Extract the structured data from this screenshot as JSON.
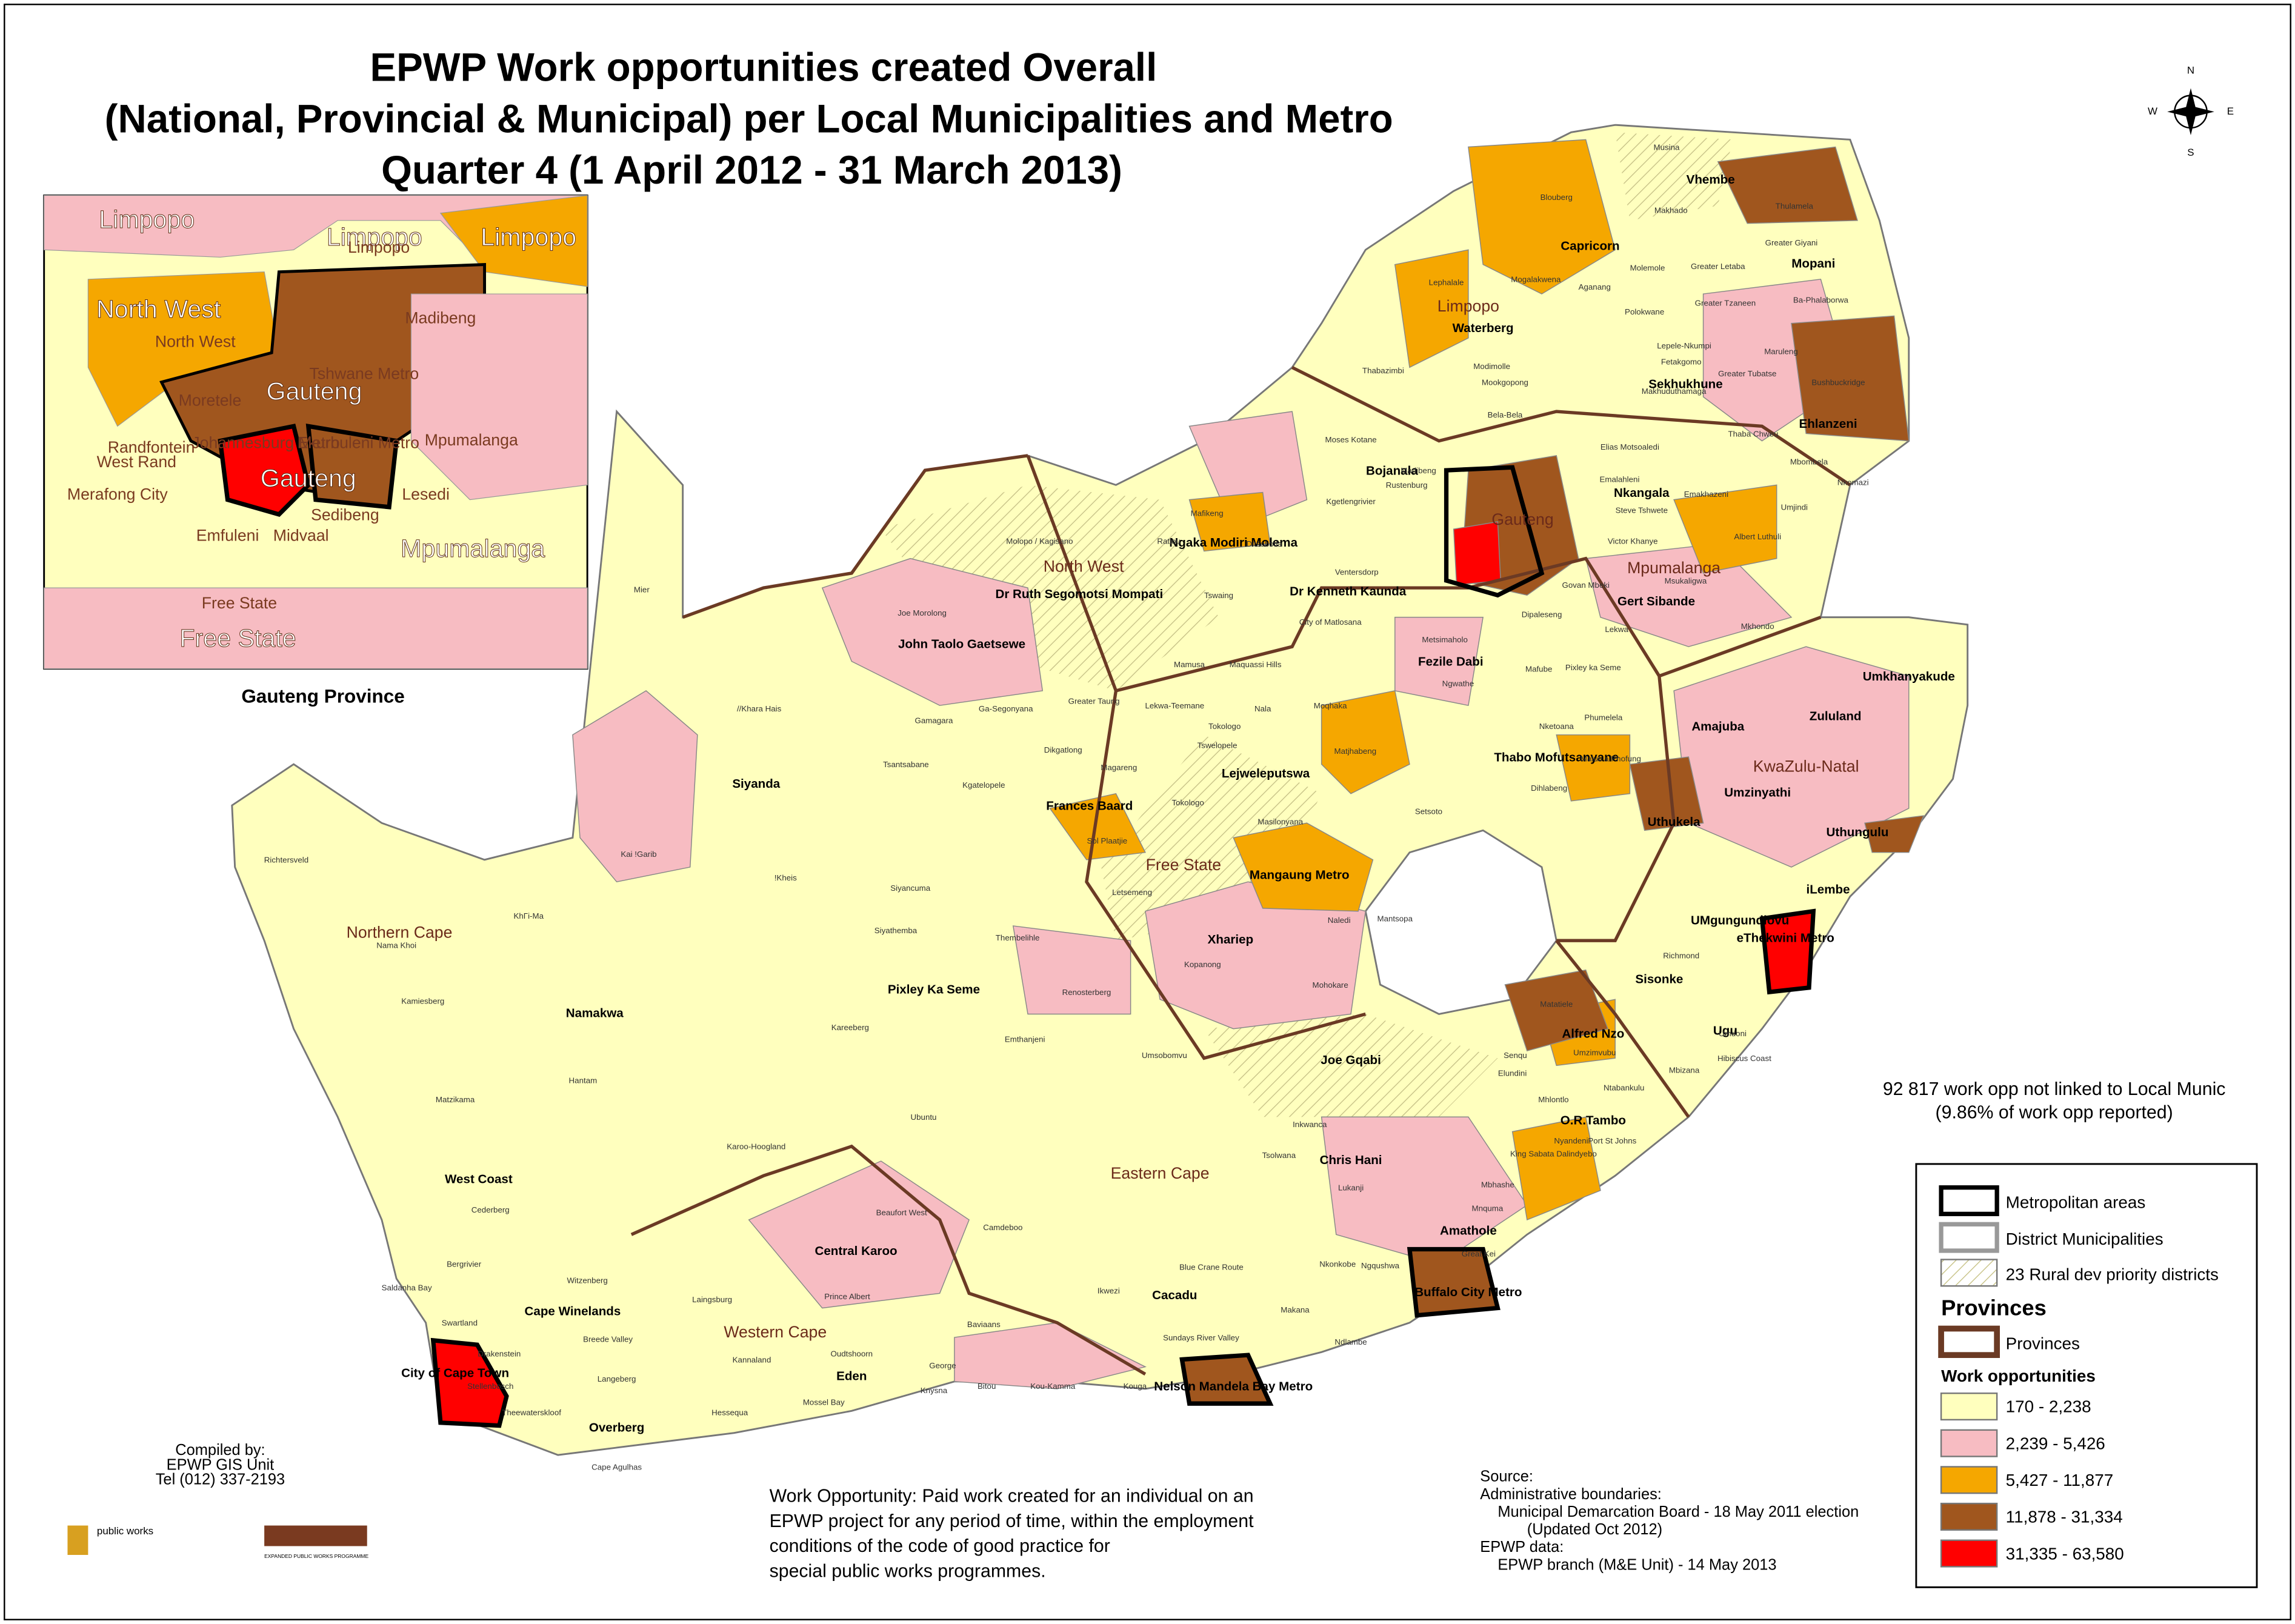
{
  "title": {
    "lines": [
      "EPWP Work opportunities created Overall",
      "(National, Provincial & Municipal) per Local Municipalities and Metro",
      "Quarter 4  (1 April 2012 - 31 March 2013)"
    ]
  },
  "compass": {
    "n": "N",
    "e": "E",
    "s": "S",
    "w": "W"
  },
  "inset": {
    "caption": "Gauteng Province",
    "big_labels": [
      "Limpopo",
      "Limpopo",
      "North West",
      "Gauteng",
      "Gauteng",
      "Mpumalanga",
      "Free State",
      "Limpopo"
    ],
    "small_labels": [
      "Limpopo",
      "North West",
      "Mpumalanga",
      "Free State",
      "Randfontein",
      "West Rand",
      "Merafong City",
      "Emfuleni",
      "Midvaal",
      "Sedibeng",
      "Lesedi",
      "Johannesburg Metro",
      "Ekurhuleni Metro",
      "Tshwane Metro",
      "Moretele",
      "Madibeng"
    ]
  },
  "map": {
    "province_labels": [
      "Limpopo",
      "North West",
      "Mpumalanga",
      "Gauteng",
      "KwaZulu-Natal",
      "Free State",
      "Northern Cape",
      "Eastern Cape",
      "Western Cape"
    ],
    "district_labels": [
      "Capricorn",
      "Vhembe",
      "Mopani",
      "Waterberg",
      "Sekhukhune",
      "Ehlanzeni",
      "Nkangala",
      "Bojanala",
      "Ngaka Modiri Molema",
      "Dr Ruth Segomotsi Mompati",
      "Dr Kenneth Kaunda",
      "Gert Sibande",
      "John Taolo Gaetsewe",
      "Fezile Dabi",
      "Siyanda",
      "Frances Baard",
      "Lejweleputswa",
      "Thabo Mofutsanyane",
      "Amajuba",
      "Zululand",
      "Umkhanyakude",
      "Umzinyathi",
      "Uthukela",
      "Uthungulu",
      "iLembe",
      "Mangaung Metro",
      "Xhariep",
      "UMgungundlovu",
      "eThekwini Metro",
      "Pixley Ka Seme",
      "Namakwa",
      "Sisonke",
      "Alfred Nzo",
      "Ugu",
      "Joe Gqabi",
      "O.R.Tambo",
      "Chris Hani",
      "West Coast",
      "Amathole",
      "Central Karoo",
      "Cacadu",
      "Buffalo City Metro",
      "Cape Winelands",
      "City of Cape Town",
      "Eden",
      "Nelson Mandela Bay Metro",
      "Overberg"
    ],
    "municipality_labels": [
      "Musina",
      "Makhado",
      "Thulamela",
      "Polokwane",
      "Lephalale",
      "Modimolle",
      "Thabazimbi",
      "Mier",
      "//Khara Hais",
      "Kai !Garib",
      "Richtersveld",
      "Nama Khoi",
      "KhΓi-Ma",
      "Kamiesberg",
      "Hantam",
      "Matzikama",
      "Karoo-Hoogland",
      "Cederberg",
      "Bergrivier",
      "Saldanha Bay",
      "Swartland",
      "Drakenstein",
      "Stellenbosch",
      "Breede Valley",
      "Langeberg",
      "Theewaterskloof",
      "Cape Agulhas",
      "Witzenberg",
      "Laingsburg",
      "Prince Albert",
      "Beaufort West",
      "Kannaland",
      "Oudtshoorn",
      "Hessequa",
      "Mossel Bay",
      "George",
      "Knysna",
      "Bitou",
      "Kou-Kamma",
      "Kouga",
      "Baviaans",
      "Camdeboo",
      "Ikwezi",
      "Blue Crane Route",
      "Makana",
      "Ndlambe",
      "Sundays River Valley",
      "Ubuntu",
      "Umsobomvu",
      "Emthanjeni",
      "Kareeberg",
      "Renosterberg",
      "Thembelihle",
      "Siyathemba",
      "Siyancuma",
      "!Kheis",
      "Tsantsabane",
      "Kgatelopele",
      "Dikgatlong",
      "Magareng",
      "Sol Plaatjie",
      "Gamagara",
      "Ga-Segonyana",
      "Joe Morolong",
      "Kopanong",
      "Mohokare",
      "Naledi",
      "Mantsopa",
      "Letsemeng",
      "Tokologo",
      "Tswelopele",
      "Masilonyana",
      "Matjhabeng",
      "Nala",
      "Moqhaka",
      "Ngwathe",
      "Metsimaholo",
      "Mafube",
      "Phumelela",
      "Nketoana",
      "Dihlabeng",
      "Setsoto",
      "Maluti a Phofung",
      "Senqu",
      "Elundini",
      "Inkwanca",
      "Tsolwana",
      "Lukanji",
      "Nkonkobe",
      "Ngqushwa",
      "Great Kei",
      "Mbhashe",
      "Mnquma",
      "King Sabata Dalindyebo",
      "Nyandeni",
      "Port St Johns",
      "Mhlontlo",
      "Umzimvubu",
      "Matatiele",
      "Ntabankulu",
      "Mbizana",
      "Hibiscus Coast",
      "Umdoni",
      "Richmond",
      "Mafikeng",
      "Ratlou",
      "Tswaing",
      "Ditsobotla",
      "Moses Kotane",
      "Rustenburg",
      "Madibeng",
      "Kgetlengrivier",
      "Ventersdorp",
      "City of Matlosana",
      "Maquassi Hills",
      "Greater Taung",
      "Lekwa-Teemane",
      "Mamusa",
      "Molopo / Kagisano",
      "Mogalakwena",
      "Aganang",
      "Molemole",
      "Blouberg",
      "Greater Letaba",
      "Greater Tzaneen",
      "Ba-Phalaborwa",
      "Maruleng",
      "Greater Giyani",
      "Lepele-Nkumpi",
      "Fetakgomo",
      "Greater Tubatse",
      "Makhuduthamaga",
      "Elias Motsoaledi",
      "Thaba Chweu",
      "Mbombela",
      "Umjindi",
      "Nkomazi",
      "Bushbuckridge",
      "Emakhazeni",
      "Steve Tshwete",
      "Emalahleni",
      "Victor Khanye",
      "Albert Luthuli",
      "Msukaligwa",
      "Mkhondo",
      "Lekwa",
      "Govan Mbeki",
      "Dipaleseng",
      "Pixley ka Seme",
      "Bela-Bela",
      "Mookgopong",
      "Tokologo"
    ]
  },
  "note": {
    "lines": [
      "92 817 work opp not linked to Local Munic",
      "(9.86% of work opp reported)"
    ]
  },
  "legend": {
    "items": [
      "Metropolitan areas",
      "District Municipalities",
      "23 Rural dev priority districts"
    ],
    "provinces_heading": "Provinces",
    "provinces_item": "Provinces",
    "classes_heading": "Work opportunities",
    "classes": [
      {
        "label": "170 - 2,238",
        "color": "#ffffbe"
      },
      {
        "label": "2,239 - 5,426",
        "color": "#f7bcc2"
      },
      {
        "label": "5,427 - 11,877",
        "color": "#f5a700"
      },
      {
        "label": "11,878 - 31,334",
        "color": "#a0561e"
      },
      {
        "label": "31,335 - 63,580",
        "color": "#ff0000"
      }
    ]
  },
  "definition": {
    "lines": [
      "Work Opportunity: Paid work created for an individual on an",
      "EPWP project for any period of time, within the employment",
      "conditions of the code of good practice for",
      "special public works programmes."
    ]
  },
  "source": {
    "lines": [
      "Source:",
      "Administrative boundaries:",
      "Municipal Demarcation Board - 18 May 2011 election",
      "(Updated Oct 2012)",
      "EPWP data:",
      "EPWP branch (M&E Unit) - 14 May 2013"
    ]
  },
  "compiled": {
    "lines": [
      "Compiled by:",
      "EPWP GIS Unit",
      "Tel (012) 337-2193"
    ]
  },
  "logos": [
    "public works",
    "EXPANDED PUBLIC WORKS PROGRAMME"
  ]
}
